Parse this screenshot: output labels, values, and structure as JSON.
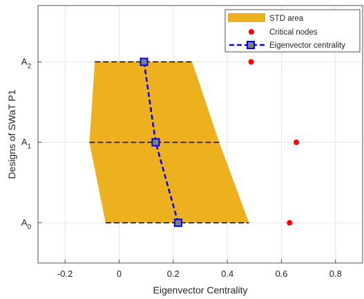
{
  "chart_data": {
    "type": "line",
    "title": "",
    "xlabel": "Eigenvector Centrality",
    "ylabel": "Designs of SWaT P1",
    "xlim": [
      -0.3,
      0.9
    ],
    "ylim": [
      -0.5,
      2.7
    ],
    "xticks": [
      -0.2,
      0,
      0.2,
      0.4,
      0.6,
      0.8
    ],
    "xtick_labels": [
      "-0.2",
      "0",
      "0.2",
      "0.4",
      "0.6",
      "0.8"
    ],
    "yticks": [
      {
        "value": 0,
        "base": "A",
        "sub": "0"
      },
      {
        "value": 1,
        "base": "A",
        "sub": "1"
      },
      {
        "value": 2,
        "base": "A",
        "sub": "2"
      }
    ],
    "grid": true,
    "legend_position": "top-right",
    "series": [
      {
        "name": "STD area",
        "kind": "area",
        "color": "#EDB120",
        "lower": [
          -0.05,
          -0.11,
          -0.09
        ],
        "upper": [
          0.48,
          0.37,
          0.27
        ],
        "y": [
          0,
          1,
          2
        ]
      },
      {
        "name": "Critical nodes",
        "kind": "scatter",
        "color": "#FF0000",
        "x": [
          0.63,
          0.655,
          0.488
        ],
        "y": [
          0,
          1,
          2
        ]
      },
      {
        "name": "Eigenvector centrality",
        "kind": "line",
        "color": "#0000FF",
        "marker": "square",
        "x": [
          0.218,
          0.135,
          0.092
        ],
        "y": [
          0,
          1,
          2
        ]
      }
    ]
  }
}
